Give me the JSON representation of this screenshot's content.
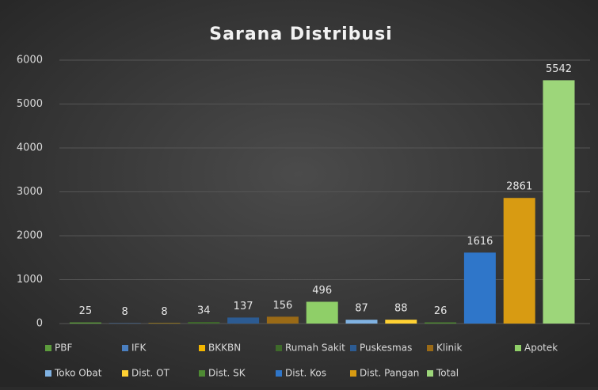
{
  "chart_data": {
    "type": "bar",
    "title": "Sarana Distribusi",
    "series": [
      {
        "name": "PBF",
        "color": "#5c9c3c",
        "values": [
          25
        ]
      },
      {
        "name": "IFK",
        "color": "#4a7fc0",
        "values": [
          8
        ]
      },
      {
        "name": "BKKBN",
        "color": "#f2b600",
        "values": [
          8
        ]
      },
      {
        "name": "Rumah Sakit",
        "color": "#3e6a2a",
        "values": [
          34
        ]
      },
      {
        "name": "Puskesmas",
        "color": "#2c5b92",
        "values": [
          137
        ]
      },
      {
        "name": "Klinik",
        "color": "#9a6a16",
        "values": [
          156
        ]
      },
      {
        "name": "Apotek",
        "color": "#8fcf68",
        "values": [
          496
        ]
      },
      {
        "name": "Toko Obat",
        "color": "#80b2e2",
        "values": [
          87
        ]
      },
      {
        "name": "Dist. OT",
        "color": "#ffd133",
        "values": [
          88
        ]
      },
      {
        "name": "Dist. SK",
        "color": "#4e8a33",
        "values": [
          26
        ]
      },
      {
        "name": "Dist. Kos",
        "color": "#2f76c9",
        "values": [
          1616
        ]
      },
      {
        "name": "Dist. Pangan",
        "color": "#d89b12",
        "values": [
          2861
        ]
      },
      {
        "name": "Total",
        "color": "#9dd67a",
        "values": [
          5542
        ]
      }
    ],
    "ylim": [
      0,
      6000
    ],
    "yticks": [
      0,
      1000,
      2000,
      3000,
      4000,
      5000,
      6000
    ],
    "grid": true,
    "legend": "bottom"
  }
}
